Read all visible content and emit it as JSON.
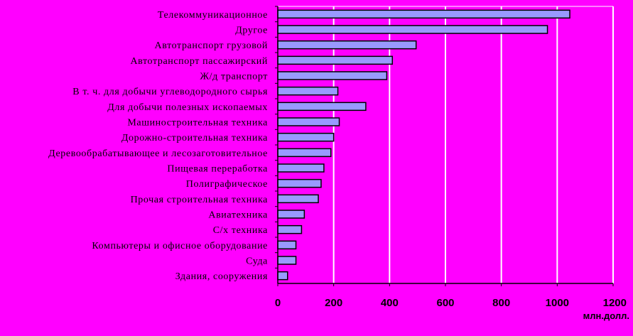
{
  "chart_data": {
    "type": "bar",
    "orientation": "horizontal",
    "categories": [
      "Телекоммуникационное",
      "Другое",
      "Автотранспорт грузовой",
      "Автотранспорт пассажирский",
      "Ж/д транспорт",
      "В т. ч. для добычи углеводородного сырья",
      "Для добычи полезных ископаемых",
      "Машиностроительная техника",
      "Дорожно-строительная техника",
      "Деревообрабатывающее и лесозаготовительное",
      "Пищевая переработка",
      "Полиграфическое",
      "Прочая строительная техника",
      "Авиатехника",
      "С/х техника",
      "Компьютеры и офисное оборудование",
      "Суда",
      "Здания, сооружения"
    ],
    "values": [
      1045,
      965,
      495,
      410,
      390,
      215,
      315,
      220,
      200,
      190,
      165,
      155,
      145,
      95,
      85,
      65,
      65,
      35
    ],
    "xlim": [
      0,
      1200
    ],
    "xticks": [
      0,
      200,
      400,
      600,
      800,
      1000,
      1200
    ],
    "xlabel": "млн.долл.",
    "grid": true,
    "colors": {
      "background": "#ff00ff",
      "plot_area": "#ff00ff",
      "bar_fill": "#9999ff",
      "bar_stroke": "#000000",
      "gridline": "#ffffff"
    }
  }
}
